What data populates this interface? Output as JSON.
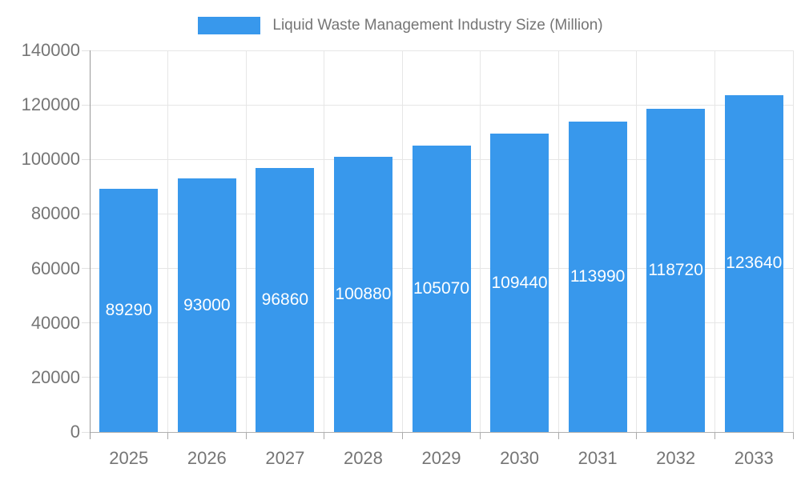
{
  "chart_data": {
    "type": "bar",
    "title": "Liquid Waste Management Industry Size (Million)",
    "categories": [
      "2025",
      "2026",
      "2027",
      "2028",
      "2029",
      "2030",
      "2031",
      "2032",
      "2033"
    ],
    "values": [
      89290,
      93000,
      96860,
      100880,
      105070,
      109440,
      113990,
      118720,
      123640
    ],
    "series_name": "Liquid Waste Management Industry Size (Million)",
    "xlabel": "",
    "ylabel": "",
    "ylim": [
      0,
      140000
    ],
    "ytick_step": 20000,
    "ytick_labels": [
      "0",
      "20000",
      "40000",
      "60000",
      "80000",
      "100000",
      "120000",
      "140000"
    ],
    "grid": "horizontal-and-vertical",
    "legend_position": "top-center",
    "value_label_style": "white-centered-inside-bar-clipped"
  },
  "colors": {
    "bar": "#3898EC",
    "gridline": "#E6E6E6",
    "axis_line": "#999999",
    "baseline": "#B0B0B0",
    "tick_x": "#ABABAB",
    "tick_y": "#E2E2E2",
    "axis_text": "#757575",
    "title_text": "#757575",
    "value_text": "#FFFFFF",
    "background": "#FFFFFF"
  }
}
